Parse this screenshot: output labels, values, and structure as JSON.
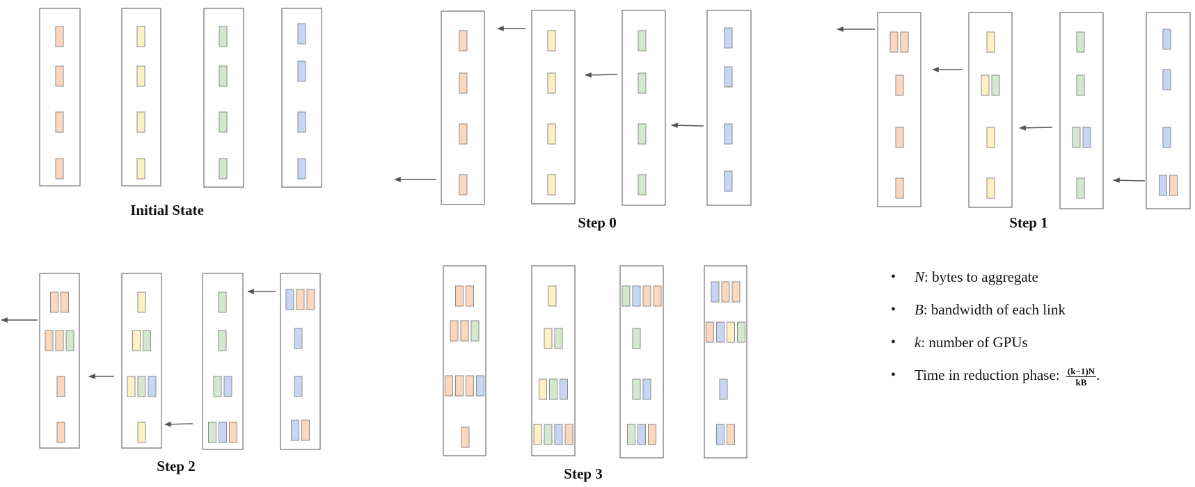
{
  "colors": {
    "orange": "#fbd7bd",
    "yellow": "#fdf0c4",
    "green": "#d3e8cf",
    "blue": "#c7d6f4",
    "outline": "#6e6e6e",
    "arrow": "#555555"
  },
  "panels": [
    {
      "label": "Initial State",
      "gpus": [
        {
          "chunks": [
            [
              "orange"
            ],
            [
              "orange"
            ],
            [
              "orange"
            ],
            [
              "orange"
            ]
          ]
        },
        {
          "chunks": [
            [
              "yellow"
            ],
            [
              "yellow"
            ],
            [
              "yellow"
            ],
            [
              "yellow"
            ]
          ]
        },
        {
          "chunks": [
            [
              "green"
            ],
            [
              "green"
            ],
            [
              "green"
            ],
            [
              "green"
            ]
          ]
        },
        {
          "chunks": [
            [
              "blue"
            ],
            [
              "blue"
            ],
            [
              "blue"
            ],
            [
              "blue"
            ]
          ]
        }
      ]
    },
    {
      "label": "Step 0",
      "gpus": [
        {
          "chunks": [
            [
              "orange"
            ],
            [
              "orange"
            ],
            [
              "orange"
            ],
            [
              "orange"
            ]
          ]
        },
        {
          "chunks": [
            [
              "yellow"
            ],
            [
              "yellow"
            ],
            [
              "yellow"
            ],
            [
              "yellow"
            ]
          ]
        },
        {
          "chunks": [
            [
              "green"
            ],
            [
              "green"
            ],
            [
              "green"
            ],
            [
              "green"
            ]
          ]
        },
        {
          "chunks": [
            [
              "blue"
            ],
            [
              "blue"
            ],
            [
              "blue"
            ],
            [
              "blue"
            ]
          ]
        }
      ]
    },
    {
      "label": "Step 1",
      "gpus": [
        {
          "chunks": [
            [
              "orange",
              "orange"
            ],
            [
              "orange"
            ],
            [
              "orange"
            ],
            [
              "orange"
            ]
          ]
        },
        {
          "chunks": [
            [
              "yellow"
            ],
            [
              "yellow",
              "green"
            ],
            [
              "yellow"
            ],
            [
              "yellow"
            ]
          ]
        },
        {
          "chunks": [
            [
              "green"
            ],
            [
              "green"
            ],
            [
              "green",
              "blue"
            ],
            [
              "green"
            ]
          ]
        },
        {
          "chunks": [
            [
              "blue"
            ],
            [
              "blue"
            ],
            [
              "blue"
            ],
            [
              "blue",
              "orange"
            ]
          ]
        }
      ]
    },
    {
      "label": "Step 2",
      "gpus": [
        {
          "chunks": [
            [
              "orange",
              "orange"
            ],
            [
              "orange",
              "orange",
              "green"
            ],
            [
              "orange"
            ],
            [
              "orange"
            ]
          ]
        },
        {
          "chunks": [
            [
              "yellow"
            ],
            [
              "yellow",
              "green"
            ],
            [
              "yellow",
              "green",
              "blue"
            ],
            [
              "yellow"
            ]
          ]
        },
        {
          "chunks": [
            [
              "green"
            ],
            [
              "green"
            ],
            [
              "green",
              "blue"
            ],
            [
              "green",
              "blue",
              "orange"
            ]
          ]
        },
        {
          "chunks": [
            [
              "blue",
              "orange",
              "orange"
            ],
            [
              "blue"
            ],
            [
              "blue"
            ],
            [
              "blue",
              "orange"
            ]
          ]
        }
      ]
    },
    {
      "label": "Step 3",
      "gpus": [
        {
          "chunks": [
            [
              "orange",
              "orange"
            ],
            [
              "orange",
              "orange",
              "green"
            ],
            [
              "orange",
              "orange",
              "orange",
              "blue"
            ],
            [
              "orange"
            ]
          ]
        },
        {
          "chunks": [
            [
              "yellow"
            ],
            [
              "yellow",
              "green"
            ],
            [
              "yellow",
              "green",
              "blue"
            ],
            [
              "yellow",
              "green",
              "blue",
              "orange"
            ]
          ]
        },
        {
          "chunks": [
            [
              "green",
              "blue",
              "orange",
              "orange"
            ],
            [
              "green"
            ],
            [
              "green",
              "blue"
            ],
            [
              "green",
              "blue",
              "orange"
            ]
          ]
        },
        {
          "chunks": [
            [
              "blue",
              "orange",
              "orange"
            ],
            [
              "orange",
              "blue",
              "yellow",
              "green"
            ],
            [
              "blue"
            ],
            [
              "blue",
              "orange"
            ]
          ]
        }
      ]
    }
  ],
  "legend": [
    {
      "symbol": "N",
      "text": ": bytes to aggregate"
    },
    {
      "symbol": "B",
      "text": ": bandwidth of each link"
    },
    {
      "symbol": "k",
      "text": ": number of GPUs"
    },
    {
      "symbol": "",
      "text": "Time in reduction phase: ",
      "frac_num": "(k−1)N",
      "frac_den": "kB",
      "suffix": "."
    }
  ]
}
